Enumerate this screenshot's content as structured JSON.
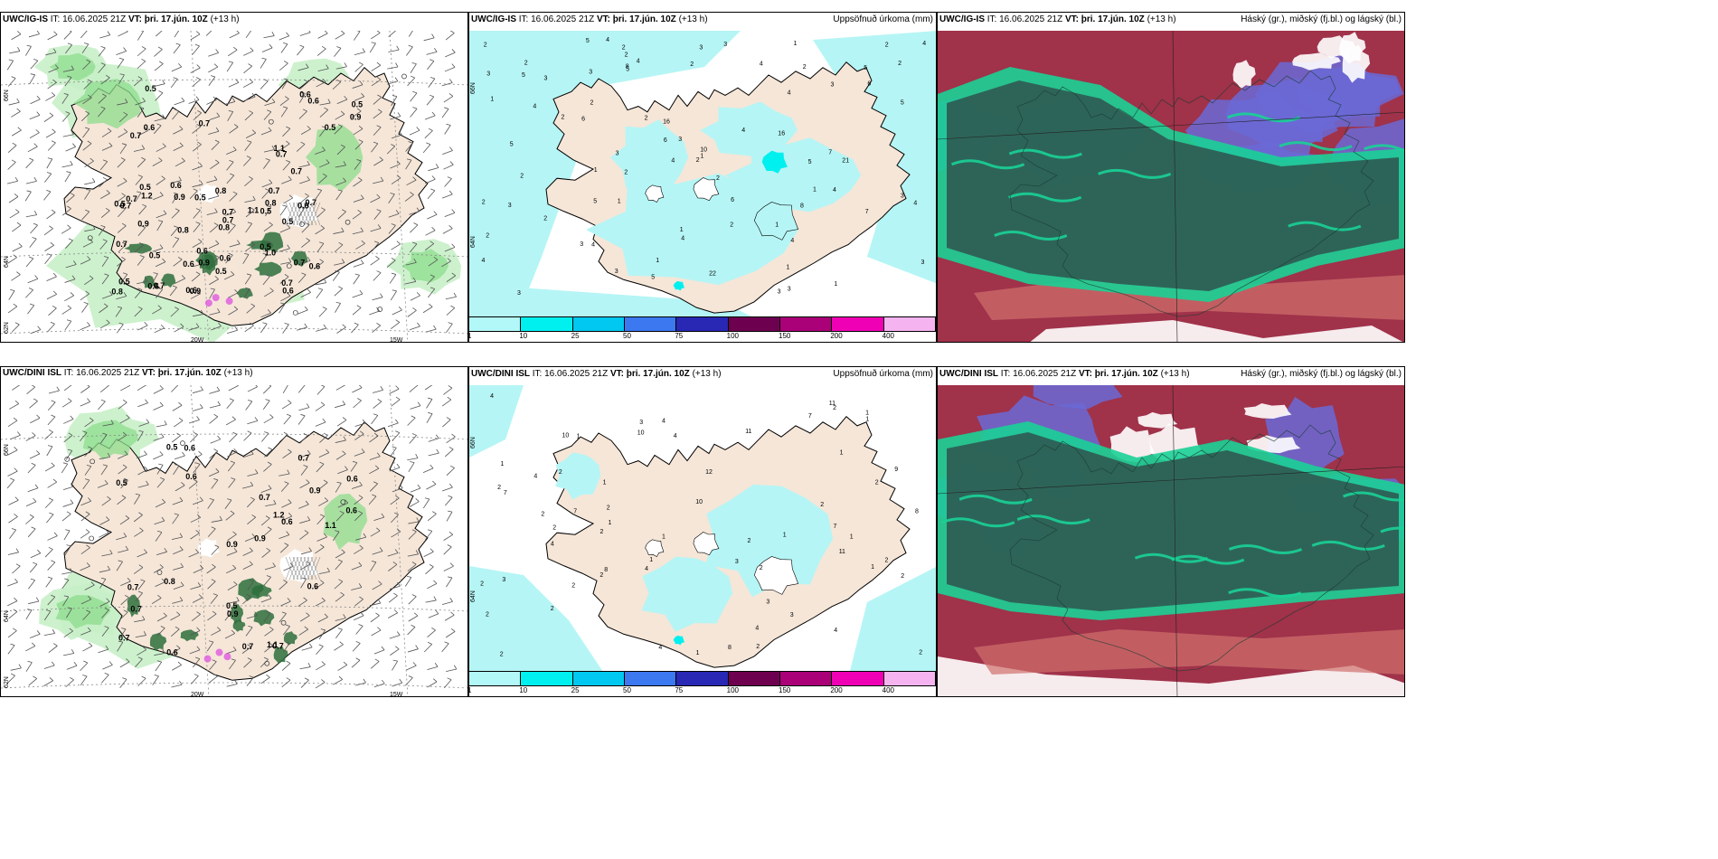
{
  "panels": [
    {
      "id": "p1",
      "model": "UWC/IG-IS",
      "it_label": "IT:",
      "it": "16.06.2025 21Z",
      "vt_label": "VT:",
      "vt": "þri. 17.jún. 10Z",
      "lead": "(+13 h)",
      "right": "",
      "lat_labels": [
        "66N",
        "64N",
        "62N"
      ],
      "lon_labels": [
        "20W",
        "15W"
      ]
    },
    {
      "id": "p2",
      "model": "UWC/IG-IS",
      "it_label": "IT:",
      "it": "16.06.2025 21Z",
      "vt_label": "VT:",
      "vt": "þri. 17.jún. 10Z",
      "lead": "(+13 h)",
      "right": "Uppsöfnuð úrkoma (mm)",
      "lat_labels": [
        "66N",
        "64N"
      ],
      "lon_labels": []
    },
    {
      "id": "p3",
      "model": "UWC/IG-IS",
      "it_label": "IT:",
      "it": "16.06.2025 21Z",
      "vt_label": "VT:",
      "vt": "þri. 17.jún. 10Z",
      "lead": "(+13 h)",
      "right": "Háský (gr.), miðský (fj.bl.) og lágský (bl.)",
      "lat_labels": [],
      "lon_labels": []
    },
    {
      "id": "p4",
      "model": "UWC/DINI ISL",
      "it_label": "IT:",
      "it": "16.06.2025 21Z",
      "vt_label": "VT:",
      "vt": "þri. 17.jún. 10Z",
      "lead": "(+13 h)",
      "right": "",
      "lat_labels": [
        "66N",
        "64N",
        "62N"
      ],
      "lon_labels": [
        "20W",
        "15W"
      ]
    },
    {
      "id": "p5",
      "model": "UWC/DINI ISL",
      "it_label": "IT:",
      "it": "16.06.2025 21Z",
      "vt_label": "VT:",
      "vt": "þri. 17.jún. 10Z",
      "lead": "(+13 h)",
      "right": "Uppsöfnuð úrkoma (mm)",
      "lat_labels": [
        "66N",
        "64N"
      ],
      "lon_labels": []
    },
    {
      "id": "p6",
      "model": "UWC/DINI ISL",
      "it_label": "IT:",
      "it": "16.06.2025 21Z",
      "vt_label": "VT:",
      "vt": "þri. 17.jún. 10Z",
      "lead": "(+13 h)",
      "right": "Háský (gr.), miðský (fj.bl.) og lágský (bl.)",
      "lat_labels": [],
      "lon_labels": []
    }
  ],
  "colorbar": {
    "ticks": [
      "1",
      "10",
      "25",
      "50",
      "75",
      "100",
      "150",
      "200",
      "400"
    ],
    "colors": [
      "#b3f8f8",
      "#00f0f0",
      "#00c8f0",
      "#3c78f0",
      "#2828b4",
      "#6e0050",
      "#aa0078",
      "#f000b4",
      "#f5b4f0"
    ]
  },
  "colors": {
    "land": "#f5e6d8",
    "precip": "#b6f5f5",
    "green_light": "#c8f0c8",
    "green_mid": "#8cdc8c",
    "green_dark": "#2d6e3c",
    "cloud_teal": "#2e5f55",
    "cloud_bright": "#19d296",
    "cloud_red": "#a0324a",
    "cloud_blue": "#6a6ad6",
    "coast": "#000000"
  },
  "p1_values": [
    "0.5",
    "0.7",
    "0.6",
    "0.7",
    "0.6",
    "0.6",
    "0.5",
    "1.1",
    "0.5",
    "0.7",
    "0.7",
    "0.9",
    "0.7",
    "0.9",
    "0.7",
    "0.7",
    "0.6",
    "0.6",
    "0.5",
    "0.6",
    "0.6",
    "0.5",
    "0.7",
    "0.7",
    "0.6",
    "0.9",
    "0.8",
    "1.0",
    "0.7",
    "0.8",
    "0.8",
    "0.7",
    "1.2",
    "0.6",
    "0.6",
    "0.8",
    "0.9",
    "0.5",
    "0.5",
    "0.9",
    "0.6",
    "0.5",
    "0.7",
    "0.8",
    "0.6",
    "0.7",
    "0.5",
    "0.5",
    "1.1",
    "0.7",
    "0.5",
    "0.5"
  ],
  "p2_values": [
    "2",
    "2",
    "2",
    "3",
    "3",
    "6",
    "4",
    "3",
    "1",
    "2",
    "1",
    "3",
    "2",
    "3",
    "2",
    "1",
    "3",
    "2",
    "1",
    "2",
    "2",
    "4",
    "3",
    "5",
    "8",
    "16",
    "21",
    "22",
    "16",
    "5",
    "4",
    "5",
    "4",
    "5",
    "10",
    "3",
    "4",
    "2",
    "4",
    "5",
    "4",
    "1",
    "2",
    "1",
    "3",
    "7",
    "4",
    "3",
    "1",
    "6",
    "5",
    "1",
    "6",
    "3",
    "4",
    "4",
    "4",
    "3",
    "2",
    "5",
    "4",
    "2",
    "5",
    "8",
    "1",
    "5",
    "2",
    "7",
    "2",
    "2",
    "4",
    "1",
    "6",
    "4",
    "2",
    "3",
    "2",
    "3",
    "3",
    "1",
    "3",
    "2"
  ],
  "p4_values": [
    "0.5",
    "0.6",
    "0.6",
    "0.5",
    "0.9",
    "0.7",
    "0.6",
    "1.2",
    "0.6",
    "0.7",
    "0.6",
    "1.1",
    "0.6",
    "0.7",
    "0.9",
    "0.7",
    "0.7",
    "0.5",
    "0.6",
    "0.7",
    "0.7",
    "1.1",
    "0.9",
    "0.8",
    "0.9"
  ],
  "p5_values": [
    "1",
    "1",
    "1",
    "2",
    "2",
    "1",
    "1",
    "2",
    "1",
    "2",
    "1",
    "1",
    "2",
    "7",
    "2",
    "2",
    "9",
    "8",
    "12",
    "11",
    "7",
    "8",
    "2",
    "8",
    "11",
    "7",
    "1",
    "2",
    "4",
    "7",
    "2",
    "4",
    "4",
    "2",
    "3",
    "2",
    "2",
    "4",
    "2",
    "3",
    "4",
    "4",
    "3",
    "2",
    "1",
    "4",
    "2",
    "1",
    "11",
    "4",
    "3",
    "2",
    "1",
    "2",
    "2",
    "2",
    "10",
    "10",
    "10",
    "2",
    "3",
    "1",
    "4"
  ]
}
